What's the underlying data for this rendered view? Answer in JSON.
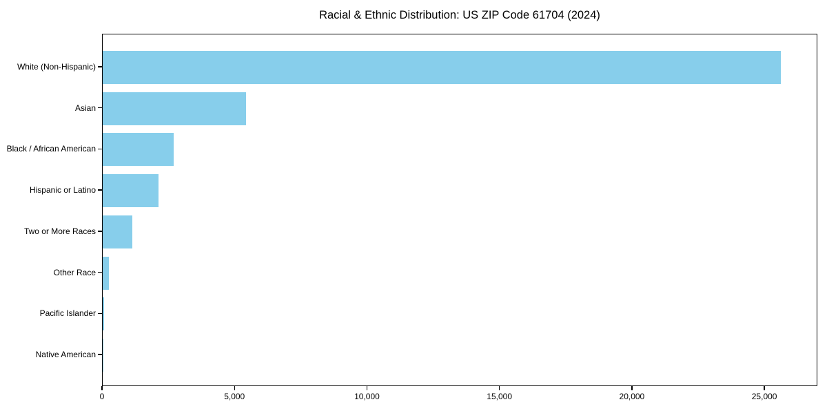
{
  "chart_data": {
    "type": "bar",
    "orientation": "horizontal",
    "title": "Racial & Ethnic Distribution: US ZIP Code 61704 (2024)",
    "categories": [
      "White (Non-Hispanic)",
      "Asian",
      "Black / African American",
      "Hispanic or Latino",
      "Two or More Races",
      "Other Race",
      "Pacific Islander",
      "Native American"
    ],
    "values": [
      25600,
      5400,
      2680,
      2100,
      1120,
      230,
      40,
      15
    ],
    "xlabel": "",
    "ylabel": "",
    "xlim": [
      0,
      27000
    ],
    "x_ticks": [
      0,
      5000,
      10000,
      15000,
      20000,
      25000
    ],
    "x_tick_labels": [
      "0",
      "5,000",
      "10,000",
      "15,000",
      "20,000",
      "25,000"
    ],
    "bar_color": "#87CEEB",
    "axis_color": "#000000",
    "background_color": "#ffffff",
    "grid": false,
    "legend": false
  }
}
